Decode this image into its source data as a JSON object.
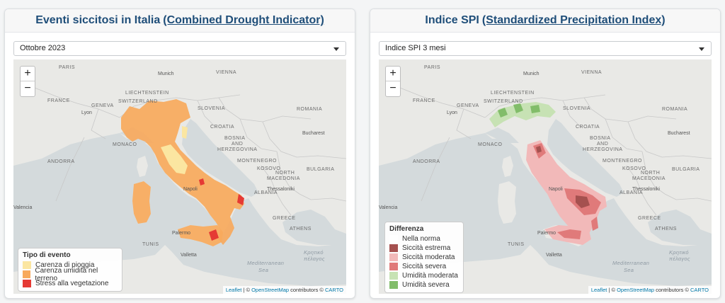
{
  "left": {
    "title_prefix": "Eventi siccitosi in Italia",
    "title_link": "(Combined Drought Indicator)",
    "select_value": "Ottobre 2023",
    "legend": {
      "title": "Tipo di evento",
      "items": [
        {
          "label": "Carenza di pioggia",
          "color": "#fbe6a1"
        },
        {
          "label": "Carenza umidità nel terreno",
          "color": "#f7a95c"
        },
        {
          "label": "Stress alla vegetazione",
          "color": "#e53a34"
        }
      ]
    }
  },
  "right": {
    "title_prefix": "Indice SPI",
    "title_link": "(Standardized Precipitation Index)",
    "select_value": "Indice SPI 3 mesi",
    "legend": {
      "title": "Differenza",
      "items": [
        {
          "label": "Nella norma",
          "color": "#ffffff"
        },
        {
          "label": "Siccità estrema",
          "color": "#a5514f"
        },
        {
          "label": "Siccità moderata",
          "color": "#f2b9b9"
        },
        {
          "label": "Siccità severa",
          "color": "#e07a7a"
        },
        {
          "label": "Umidità moderata",
          "color": "#c7e2b4"
        },
        {
          "label": "Umidità severa",
          "color": "#82bd6a"
        }
      ]
    }
  },
  "map": {
    "zoom_in": "+",
    "zoom_out": "−",
    "labels": {
      "paris": "PARIS",
      "munich": "Munich",
      "vienna": "VIENNA",
      "liechtenstein": "LIECHTENSTEIN",
      "switzerland": "SWITZERLAND",
      "geneva": "GENEVA",
      "lyon": "Lyon",
      "france": "FRANCE",
      "slovenia": "SLOVENIA",
      "croatia": "CROATIA",
      "romania": "ROMANIA",
      "bosnia": "BOSNIA",
      "and": "AND",
      "herzegovina": "HERZEGOVINA",
      "bucharest": "Bucharest",
      "monaco": "MONACO",
      "montenegro": "MONTENEGRO",
      "andorra": "ANDORRA",
      "kosovo": "KOSOVO",
      "bulgaria": "BULGARIA",
      "north": "NORTH",
      "macedonia": "MACEDONIA",
      "napoli": "Napoli",
      "thessaloniki": "Thessaloniki",
      "albania": "ALBANIA",
      "valencia": "Valencia",
      "palermo": "Palermo",
      "athens": "ATHENS",
      "greece": "GREECE",
      "tunis": "TUNIS",
      "valletta": "Valletta",
      "mediterranean_1": "Mediterranean",
      "mediterranean_2": "Sea",
      "kritiko_1": "Κρητικό",
      "kritiko_2": "πέλαγος"
    },
    "attribution": {
      "leaflet": "Leaflet",
      "sep1": " | © ",
      "osm": "OpenStreetMap",
      "middle": " contributors © ",
      "carto": "CARTO"
    }
  },
  "colors": {
    "header_text": "#1f4e79",
    "land": "#e9e9e6",
    "sea": "#d4dadc",
    "border": "#c8c8c8"
  }
}
